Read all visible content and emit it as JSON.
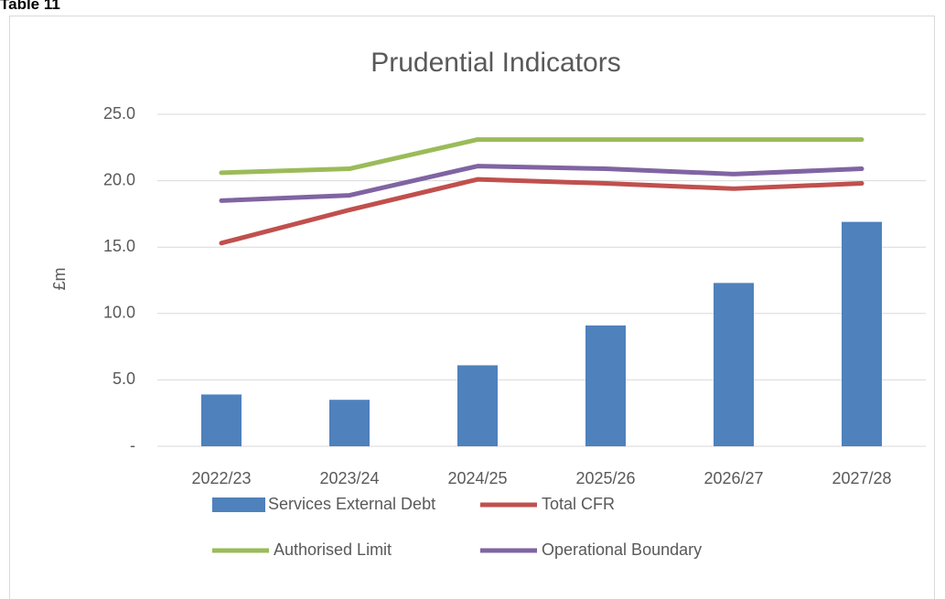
{
  "header": "Table 11",
  "chart_data": {
    "type": "bar",
    "title": "Prudential Indicators",
    "y_label": "£m",
    "categories": [
      "2022/23",
      "2023/24",
      "2024/25",
      "2025/26",
      "2026/27",
      "2027/28"
    ],
    "series": [
      {
        "name": "Services External Debt",
        "type": "bar",
        "color": "#4f81bd",
        "values": [
          3.9,
          3.5,
          6.1,
          9.1,
          12.3,
          16.9
        ]
      },
      {
        "name": "Total CFR",
        "type": "line",
        "color": "#c0504d",
        "values": [
          15.3,
          17.8,
          20.1,
          19.8,
          19.4,
          19.8
        ]
      },
      {
        "name": "Authorised Limit",
        "type": "line",
        "color": "#9bbb59",
        "values": [
          20.6,
          20.9,
          23.1,
          23.1,
          23.1,
          23.1
        ]
      },
      {
        "name": "Operational Boundary",
        "type": "line",
        "color": "#8064a2",
        "values": [
          18.5,
          18.9,
          21.1,
          20.9,
          20.5,
          20.9
        ]
      }
    ],
    "ylim": [
      0,
      25
    ],
    "yticks": [
      {
        "value": 0,
        "label": "-"
      },
      {
        "value": 5,
        "label": "5.0"
      },
      {
        "value": 10,
        "label": "10.0"
      },
      {
        "value": 15,
        "label": "15.0"
      },
      {
        "value": 20,
        "label": "20.0"
      },
      {
        "value": 25,
        "label": "25.0"
      }
    ],
    "grid": true,
    "legend": "bottom"
  }
}
